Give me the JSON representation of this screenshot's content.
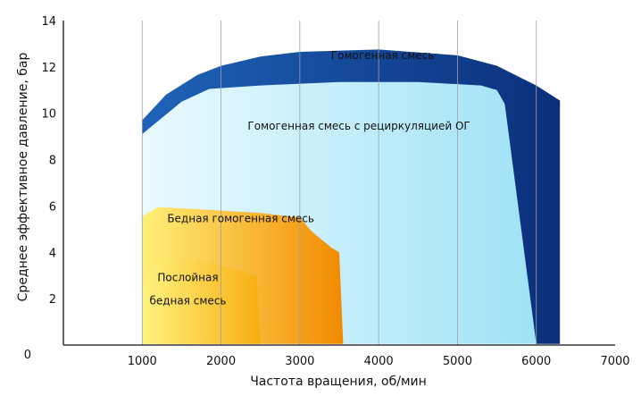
{
  "chart_data": {
    "type": "area",
    "title": "",
    "xlabel": "Частота вращения, об/мин",
    "ylabel": "Среднее эффективное давление, бар",
    "xlim": [
      0,
      7000
    ],
    "ylim": [
      0,
      14
    ],
    "x_ticks": [
      1000,
      2000,
      3000,
      4000,
      5000,
      6000,
      7000
    ],
    "y_ticks": [
      0,
      2,
      4,
      6,
      8,
      10,
      12,
      14
    ],
    "x_tick_labels": [
      "1000",
      "2000",
      "3000",
      "4000",
      "5000",
      "6000",
      "7000"
    ],
    "y_tick_labels": [
      "0",
      "2",
      "4",
      "6",
      "8",
      "10",
      "12",
      "14"
    ],
    "grid": "vertical",
    "regions": [
      {
        "id": "homogeneous",
        "label": "Гомогенная смесь",
        "color_start": "#1f63b8",
        "color_end": "#0b2f7a",
        "label_at": [
          4050,
          12.35
        ],
        "boundary": [
          [
            1000,
            9.1
          ],
          [
            1000,
            9.7
          ],
          [
            1300,
            10.8
          ],
          [
            1700,
            11.65
          ],
          [
            2000,
            12.05
          ],
          [
            2500,
            12.45
          ],
          [
            3000,
            12.65
          ],
          [
            4000,
            12.75
          ],
          [
            5000,
            12.5
          ],
          [
            5500,
            12.05
          ],
          [
            6000,
            11.2
          ],
          [
            6300,
            10.55
          ],
          [
            6300,
            0.05
          ],
          [
            6000,
            0.05
          ]
        ]
      },
      {
        "id": "homogeneous_egr",
        "label": "Гомогенная смесь с рециркуляцией ОГ",
        "color_start": "#eafaff",
        "color_end": "#9fe2f6",
        "label_at": [
          3750,
          9.3
        ],
        "boundary": [
          [
            1000,
            0.05
          ],
          [
            1000,
            9.1
          ],
          [
            1500,
            10.5
          ],
          [
            1850,
            11.05
          ],
          [
            2500,
            11.2
          ],
          [
            3500,
            11.35
          ],
          [
            4500,
            11.35
          ],
          [
            5300,
            11.2
          ],
          [
            5500,
            11.0
          ],
          [
            5600,
            10.4
          ],
          [
            6000,
            0.05
          ]
        ]
      },
      {
        "id": "lean_homogeneous",
        "label": "Бедная гомогенная смесь",
        "color_start": "#fff079",
        "color_end": "#f28a00",
        "label_at": [
          2250,
          5.3
        ],
        "boundary": [
          [
            1000,
            0.05
          ],
          [
            1000,
            5.55
          ],
          [
            1200,
            5.95
          ],
          [
            1500,
            5.9
          ],
          [
            2500,
            5.7
          ],
          [
            3000,
            5.5
          ],
          [
            3150,
            4.9
          ],
          [
            3400,
            4.2
          ],
          [
            3500,
            4.0
          ],
          [
            3550,
            0.05
          ]
        ]
      },
      {
        "id": "stratified",
        "label_lines": [
          "Послойная",
          "бедная смесь"
        ],
        "color_start": "#fff37f",
        "color_end": "#f7ae12",
        "label_at": [
          1580,
          2.75
        ],
        "boundary": [
          [
            1000,
            0.05
          ],
          [
            1000,
            2.4
          ],
          [
            1100,
            3.2
          ],
          [
            1250,
            3.65
          ],
          [
            1500,
            3.75
          ],
          [
            2000,
            3.45
          ],
          [
            2450,
            3.0
          ],
          [
            2500,
            0.05
          ]
        ]
      }
    ]
  }
}
